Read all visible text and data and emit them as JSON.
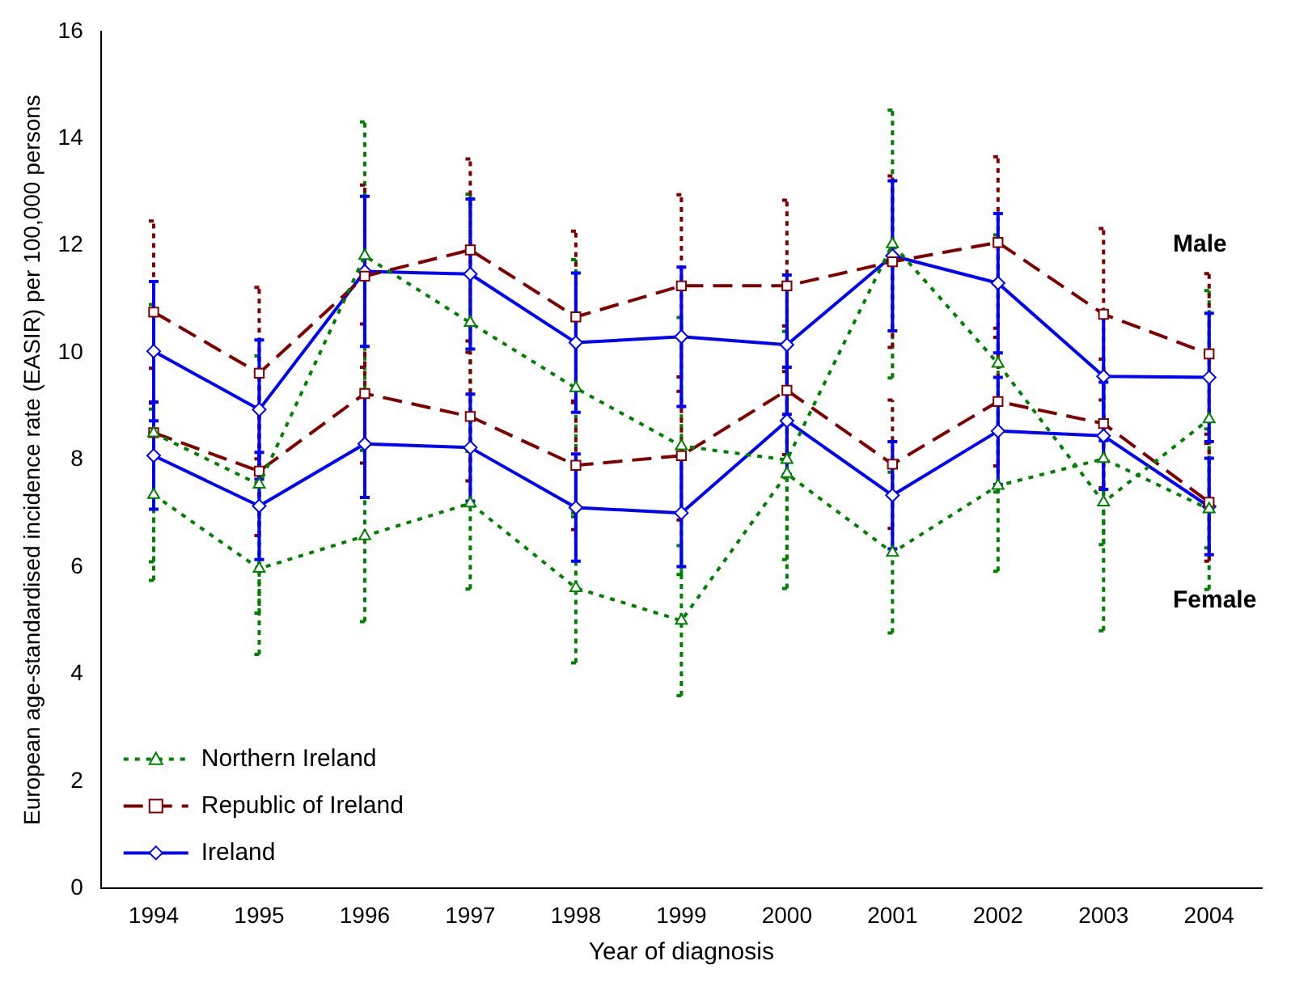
{
  "chart_data": {
    "type": "line",
    "xlabel": "Year of diagnosis",
    "ylabel": "European age-standardised incidence rate (EASIR) per 100,000 persons",
    "categories": [
      "1994",
      "1995",
      "1996",
      "1997",
      "1998",
      "1999",
      "2000",
      "2001",
      "2002",
      "2003",
      "2004"
    ],
    "ylim": [
      0,
      16
    ],
    "yticks": [
      0,
      2,
      4,
      6,
      8,
      10,
      12,
      14,
      16
    ],
    "grid": false,
    "legend": "bottom left",
    "annotations": [
      "Male",
      "Female"
    ],
    "series": [
      {
        "name": "Northern Ireland",
        "color": "#008000",
        "marker": "triangle",
        "line_style": "dotted",
        "values": [
          8.5,
          7.54,
          11.81,
          10.56,
          9.34,
          8.26,
          8.0,
          12.03,
          9.8,
          7.21,
          8.76
        ],
        "errors": [
          2.4,
          2.4,
          2.5,
          2.4,
          2.4,
          2.4,
          2.4,
          2.5,
          2.4,
          2.4,
          2.4
        ]
      },
      {
        "color": "#008000",
        "marker": "triangle",
        "line_style": "dotted",
        "values": [
          7.35,
          5.97,
          6.58,
          7.19,
          5.61,
          5.0,
          7.74,
          6.27,
          7.52,
          8.02,
          7.08
        ],
        "errors": [
          1.6,
          1.6,
          1.6,
          1.6,
          1.4,
          1.4,
          1.6,
          1.5,
          1.6,
          1.6,
          1.5
        ]
      },
      {
        "name": "Republic of Ireland",
        "color": "#800000",
        "marker": "square",
        "line_style": "dashed",
        "values": [
          10.76,
          9.62,
          11.43,
          11.92,
          10.67,
          11.25,
          11.25,
          11.7,
          12.06,
          10.72,
          9.98
        ],
        "errors": [
          1.7,
          1.6,
          1.7,
          1.7,
          1.6,
          1.7,
          1.6,
          1.6,
          1.6,
          1.6,
          1.5
        ]
      },
      {
        "color": "#800000",
        "marker": "square",
        "line_style": "dashed",
        "values": [
          8.51,
          7.79,
          9.24,
          8.81,
          7.9,
          8.08,
          9.3,
          7.92,
          9.09,
          8.68,
          7.21
        ],
        "errors": [
          1.2,
          1.2,
          1.3,
          1.2,
          1.2,
          1.2,
          1.2,
          1.2,
          1.2,
          1.2,
          1.1
        ]
      },
      {
        "name": "Ireland",
        "color": "#0000ff",
        "marker": "diamond",
        "line_style": "solid",
        "values": [
          10.03,
          8.94,
          11.52,
          11.47,
          10.19,
          10.3,
          10.15,
          11.81,
          11.3,
          9.56,
          9.54
        ],
        "errors": [
          1.3,
          1.3,
          1.4,
          1.4,
          1.3,
          1.3,
          1.3,
          1.4,
          1.3,
          1.2,
          1.2
        ]
      },
      {
        "color": "#0000ff",
        "marker": "diamond",
        "line_style": "solid",
        "values": [
          8.08,
          7.14,
          8.3,
          8.23,
          7.11,
          7.01,
          8.73,
          7.34,
          8.54,
          8.45,
          7.13
        ],
        "errors": [
          1.0,
          1.0,
          1.0,
          1.0,
          1.0,
          1.0,
          1.0,
          1.0,
          1.0,
          1.0,
          0.9
        ]
      }
    ]
  }
}
